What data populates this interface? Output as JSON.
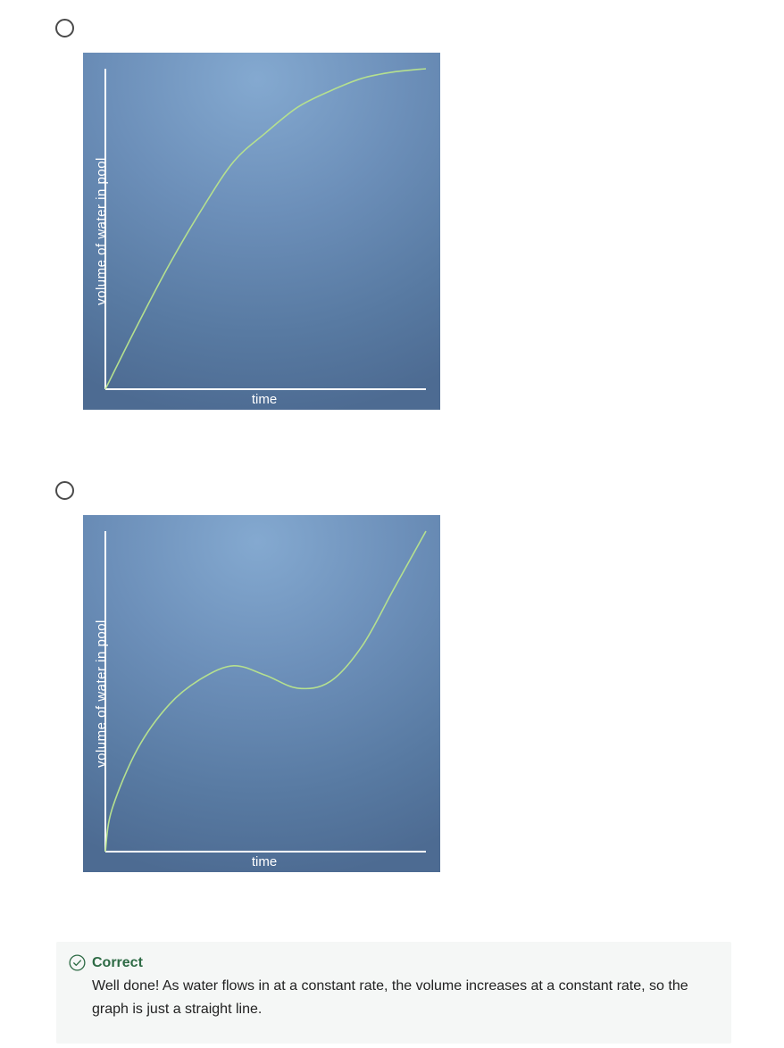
{
  "options": [
    {
      "chart_data": {
        "type": "line",
        "xlabel": "time",
        "ylabel": "volume of water in pool",
        "x": [
          0,
          0.1,
          0.2,
          0.3,
          0.4,
          0.5,
          0.6,
          0.7,
          0.8,
          0.9,
          1.0
        ],
        "values": [
          0,
          0.2,
          0.39,
          0.56,
          0.71,
          0.8,
          0.88,
          0.93,
          0.97,
          0.99,
          1.0
        ],
        "xlim": [
          0,
          1
        ],
        "ylim": [
          0,
          1
        ],
        "line_color": "#b5e08f"
      }
    },
    {
      "chart_data": {
        "type": "line",
        "xlabel": "time",
        "ylabel": "volume of water in pool",
        "x": [
          0,
          0.02,
          0.1,
          0.2,
          0.3,
          0.4,
          0.5,
          0.6,
          0.7,
          0.8,
          0.9,
          1.0
        ],
        "values": [
          0,
          0.13,
          0.32,
          0.46,
          0.54,
          0.58,
          0.55,
          0.51,
          0.53,
          0.64,
          0.82,
          1.0
        ],
        "xlim": [
          0,
          1
        ],
        "ylim": [
          0,
          1
        ],
        "line_color": "#b5e08f"
      }
    }
  ],
  "feedback": {
    "title": "Correct",
    "text": "Well done! As water flows in at a constant rate, the volume increases at a constant rate, so the graph is just a straight line.",
    "icon": "check-circle-icon",
    "accent_color": "#2e6b45"
  }
}
